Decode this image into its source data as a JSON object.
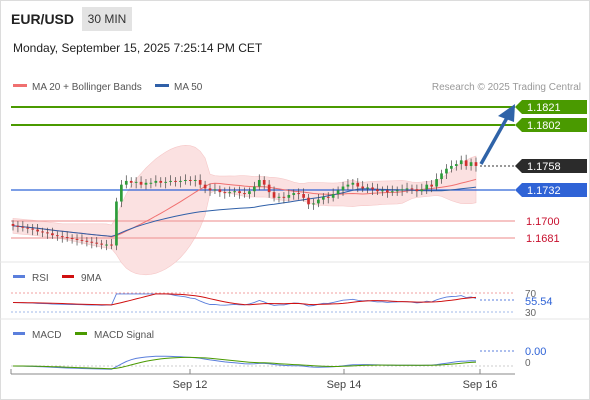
{
  "header": {
    "symbol": "EUR/USD",
    "timeframe": "30 MIN",
    "datetime": "Monday, September 15, 2025 7:25:14 PM CET"
  },
  "colors": {
    "resistance": "#4a9a00",
    "pivot": "#2f63d6",
    "support": "#e97a7a",
    "candle_up": "#2d9c3a",
    "candle_down": "#d02f2f",
    "bollinger_fill": "#fbe1e1",
    "ma20": "#f07070",
    "ma50": "#3060a8",
    "arrow": "#2f63a8",
    "rsi": "#5b7fdc",
    "rsi_ma": "#d01010",
    "macd": "#5b7fdc",
    "macd_signal": "#4a9a00"
  },
  "legend": {
    "ma20_bollinger": "MA 20 + Bollinger Bands",
    "ma50": "MA 50",
    "credit": "Research © 2025 Trading Central"
  },
  "levels": {
    "r2": "1.1821",
    "r1": "1.1802",
    "last": "1.1758",
    "pivot": "1.1732",
    "s1": "1.1700",
    "s2": "1.1681"
  },
  "rsi_panel": {
    "label": "RSI",
    "ma_label": "9MA",
    "upper": "70",
    "value": "55.54",
    "lower": "30"
  },
  "macd_panel": {
    "label": "MACD",
    "signal_label": "MACD Signal",
    "value": "0.00",
    "zero": "0"
  },
  "xaxis": {
    "ticks": [
      "Sep 12",
      "Sep 14",
      "Sep 16"
    ]
  },
  "chart_data": {
    "type": "candlestick",
    "instrument": "EUR/USD",
    "timeframe": "30 MIN",
    "price_levels": {
      "resistance_2": 1.1821,
      "resistance_1": 1.1802,
      "last_price": 1.1758,
      "pivot": 1.1732,
      "support_1": 1.17,
      "support_2": 1.1681
    },
    "close_series": [
      1.1694,
      1.1693,
      1.1692,
      1.1691,
      1.169,
      1.1688,
      1.1687,
      1.1686,
      1.1684,
      1.1683,
      1.1682,
      1.1681,
      1.168,
      1.1679,
      1.1678,
      1.1677,
      1.1676,
      1.1675,
      1.1674,
      1.1674,
      1.1673,
      1.172,
      1.1738,
      1.1742,
      1.174,
      1.1741,
      1.1738,
      1.174,
      1.174,
      1.1742,
      1.174,
      1.1741,
      1.1742,
      1.1741,
      1.1742,
      1.1743,
      1.1742,
      1.1743,
      1.1738,
      1.1734,
      1.1732,
      1.1733,
      1.173,
      1.1729,
      1.173,
      1.1731,
      1.1729,
      1.1728,
      1.1731,
      1.1736,
      1.1743,
      1.1738,
      1.173,
      1.1724,
      1.1725,
      1.1724,
      1.1727,
      1.1729,
      1.1728,
      1.1724,
      1.1717,
      1.1718,
      1.1722,
      1.1725,
      1.1724,
      1.1728,
      1.1732,
      1.1736,
      1.1738,
      1.174,
      1.1736,
      1.1734,
      1.1735,
      1.1733,
      1.1731,
      1.1732,
      1.173,
      1.1731,
      1.1732,
      1.1733,
      1.1734,
      1.1733,
      1.1731,
      1.1733,
      1.1738,
      1.1736,
      1.1744,
      1.175,
      1.1755,
      1.1758,
      1.176,
      1.1764,
      1.1758,
      1.1762,
      1.1758
    ],
    "ma50_end": 1.1738,
    "rsi": {
      "value": 55.54,
      "overbought": 70,
      "oversold": 30
    },
    "macd": {
      "value": 0.0
    },
    "x_ticks": [
      "Sep 12",
      "Sep 14",
      "Sep 16"
    ]
  }
}
